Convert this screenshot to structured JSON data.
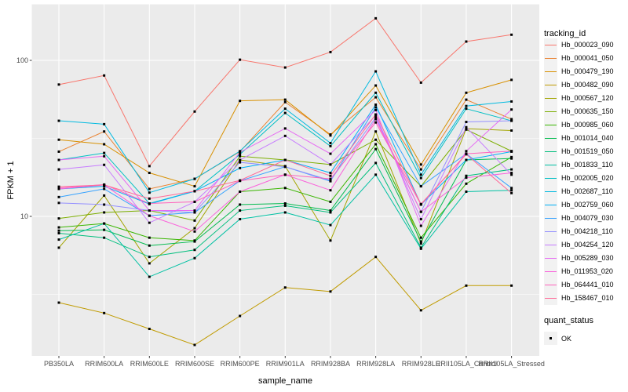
{
  "style": {
    "panel_background": "#EBEBEB",
    "grid_color": "#FFFFFF",
    "tick_color": "#333333",
    "tick_label_color": "#4D4D4D",
    "point_color": "#000000",
    "legend_key_fill": "#F2F2F2"
  },
  "chart_data": {
    "type": "line",
    "title": "",
    "xlabel": "sample_name",
    "ylabel": "FPKM + 1",
    "y_scale": "log10",
    "y_tick_labels": [
      "100",
      "10"
    ],
    "y_tick_values": [
      100,
      10
    ],
    "y_minor_values": [
      31.623,
      3.1623
    ],
    "ylim": [
      1.25,
      235
    ],
    "grid": true,
    "legend_position": "right",
    "point_shape": "square",
    "categories": [
      "PB350LA",
      "RRIM600LA",
      "RRIM600LE",
      "RRIM600SE",
      "RRIM600PE",
      "RRIM901LA",
      "RRIM928BA",
      "RRIM928LA",
      "RRIM928LE",
      "RRII105LA_Control",
      "RRII105LA_Stressed"
    ],
    "legend": {
      "line_legend_title": "tracking_id",
      "shape_legend_title": "quant_status",
      "shape_legend_items": [
        {
          "label": "OK",
          "shape": "square",
          "color": "#000000"
        }
      ]
    },
    "series": [
      {
        "name": "Hb_000023_090",
        "color": "#F8766D",
        "values": [
          70,
          80,
          21,
          47,
          101,
          90,
          113,
          186,
          72,
          132,
          146
        ]
      },
      {
        "name": "Hb_000041_050",
        "color": "#EA8331",
        "values": [
          26,
          35,
          15,
          17.4,
          26,
          54,
          33.5,
          58,
          20,
          56,
          42
        ]
      },
      {
        "name": "Hb_000479_190",
        "color": "#D89000",
        "values": [
          31,
          29,
          19,
          15.6,
          55,
          56,
          33,
          69,
          21.5,
          62,
          75
        ]
      },
      {
        "name": "Hb_000482_090",
        "color": "#C09B00",
        "values": [
          2.8,
          2.4,
          1.9,
          1.5,
          2.3,
          3.5,
          3.3,
          5.5,
          2.5,
          3.6,
          3.6
        ]
      },
      {
        "name": "Hb_000567_120",
        "color": "#A3A500",
        "values": [
          6.3,
          13.6,
          5.0,
          8.4,
          23,
          21,
          7.0,
          35,
          6.7,
          36.5,
          35.5
        ]
      },
      {
        "name": "Hb_000635_150",
        "color": "#7CAE00",
        "values": [
          9.7,
          10.6,
          10.9,
          9.4,
          24.3,
          23,
          21.5,
          31,
          15.6,
          36,
          26.2
        ]
      },
      {
        "name": "Hb_000985_060",
        "color": "#39B600",
        "values": [
          8.5,
          9.0,
          7.3,
          7.0,
          14.4,
          15.2,
          12.4,
          29,
          7.3,
          16.2,
          24
        ]
      },
      {
        "name": "Hb_001014_040",
        "color": "#00BB4E",
        "values": [
          8.1,
          8.2,
          6.5,
          6.9,
          11.9,
          12.1,
          10.9,
          27,
          6.9,
          23,
          23.5
        ]
      },
      {
        "name": "Hb_001519_050",
        "color": "#00BF7D",
        "values": [
          7.8,
          7.3,
          5.5,
          6.1,
          10.9,
          11.7,
          10.6,
          22,
          6.3,
          18.2,
          20
        ]
      },
      {
        "name": "Hb_001833_110",
        "color": "#00C1A3",
        "values": [
          7.1,
          9.0,
          4.1,
          5.4,
          9.6,
          10.6,
          8.8,
          18.5,
          6.2,
          14.4,
          14.7
        ]
      },
      {
        "name": "Hb_002005_020",
        "color": "#00BFC4",
        "values": [
          23,
          25.5,
          12.1,
          14.5,
          25,
          46,
          28.2,
          62,
          17.6,
          49,
          41
        ]
      },
      {
        "name": "Hb_002687_110",
        "color": "#00BAE0",
        "values": [
          41,
          39,
          14.2,
          17.4,
          26.2,
          49,
          29.5,
          85,
          18.5,
          51,
          54.5
        ]
      },
      {
        "name": "Hb_002759_060",
        "color": "#00B0F6",
        "values": [
          15,
          15.6,
          12,
          14.5,
          20.4,
          23,
          19,
          52,
          11.9,
          23,
          26
        ]
      },
      {
        "name": "Hb_004079_030",
        "color": "#35A2FF",
        "values": [
          13.3,
          15,
          10.1,
          10.6,
          16.9,
          20.8,
          16.8,
          50,
          15.6,
          25.2,
          15.2
        ]
      },
      {
        "name": "Hb_004218_110",
        "color": "#9590FF",
        "values": [
          12.2,
          11.9,
          10.9,
          10.6,
          22.2,
          20.8,
          17,
          43,
          10.7,
          40.3,
          41
        ]
      },
      {
        "name": "Hb_004254_120",
        "color": "#C77CFF",
        "values": [
          20,
          21.4,
          9.1,
          12.4,
          23,
          32.8,
          21.5,
          44.5,
          9.6,
          37.3,
          18.5
        ]
      },
      {
        "name": "Hb_005289_030",
        "color": "#E76BF3",
        "values": [
          23,
          24.3,
          10.9,
          10.9,
          25.8,
          36.6,
          25.2,
          48,
          8.7,
          26.2,
          48.4
        ]
      },
      {
        "name": "Hb_011953_020",
        "color": "#FA62DB",
        "values": [
          15,
          15.9,
          10.1,
          8.0,
          14.4,
          18.5,
          14.7,
          42,
          10.7,
          17.7,
          19
        ]
      },
      {
        "name": "Hb_064441_010",
        "color": "#FF62BC",
        "values": [
          15.2,
          16,
          12.1,
          12.4,
          16.9,
          18.5,
          17.4,
          40,
          11.9,
          25.2,
          26.2
        ]
      },
      {
        "name": "Hb_158467_010",
        "color": "#FF6A98",
        "values": [
          15.5,
          15.9,
          13,
          14.5,
          17,
          23,
          18.2,
          45,
          12,
          25,
          14.1
        ]
      }
    ]
  }
}
